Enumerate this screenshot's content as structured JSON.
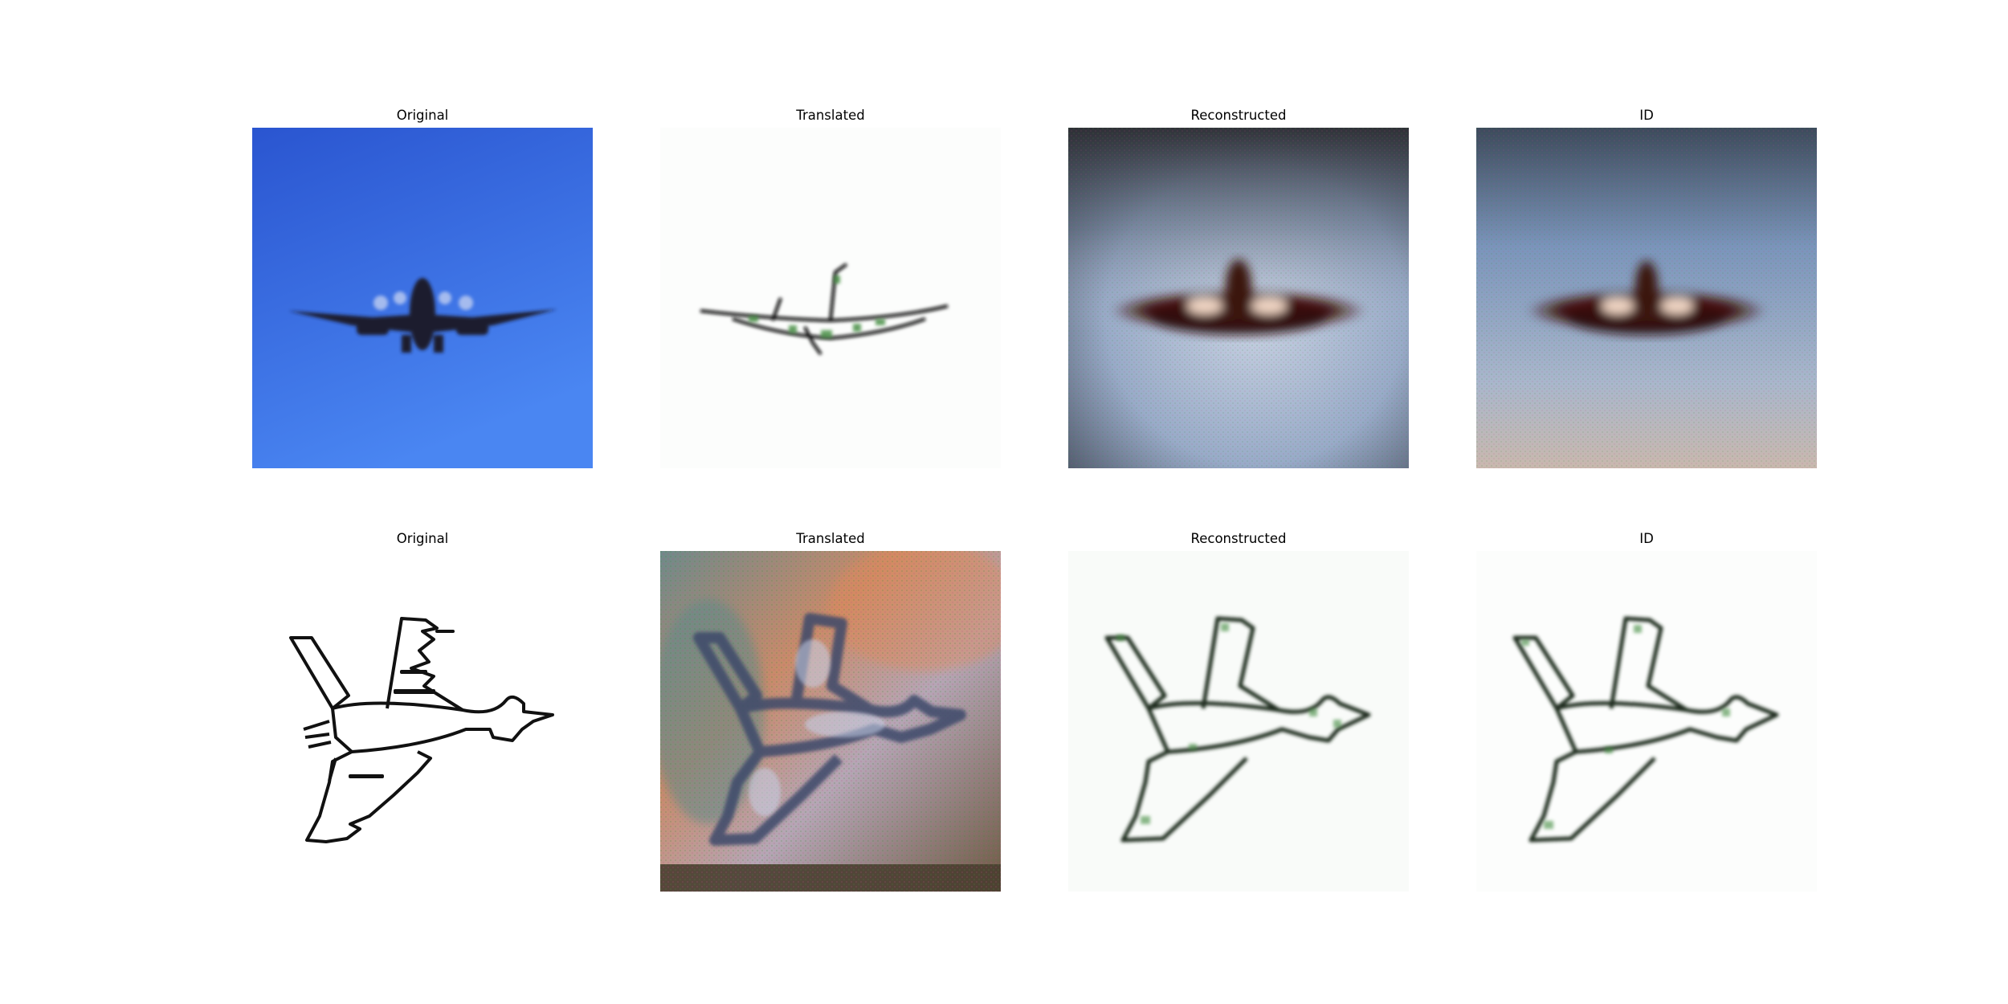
{
  "rows": [
    {
      "panels": [
        {
          "title": "Original",
          "content": "photo of propeller airplane against blue sky"
        },
        {
          "title": "Translated",
          "content": "sketch-style translation of airplane"
        },
        {
          "title": "Reconstructed",
          "content": "reconstructed airplane photo"
        },
        {
          "title": "ID",
          "content": "identity-mapped airplane photo"
        }
      ]
    },
    {
      "panels": [
        {
          "title": "Original",
          "content": "line sketch of fighter jet"
        },
        {
          "title": "Translated",
          "content": "photo-style translation of fighter jet"
        },
        {
          "title": "Reconstructed",
          "content": "reconstructed fighter jet sketch"
        },
        {
          "title": "ID",
          "content": "identity-mapped fighter jet sketch"
        }
      ]
    }
  ],
  "colors": {
    "sky_blue": "#3a6fe0",
    "plane_dark": "#1c1f2e",
    "sketch_black": "#111111",
    "artifact_green": "#3f8a3c"
  }
}
